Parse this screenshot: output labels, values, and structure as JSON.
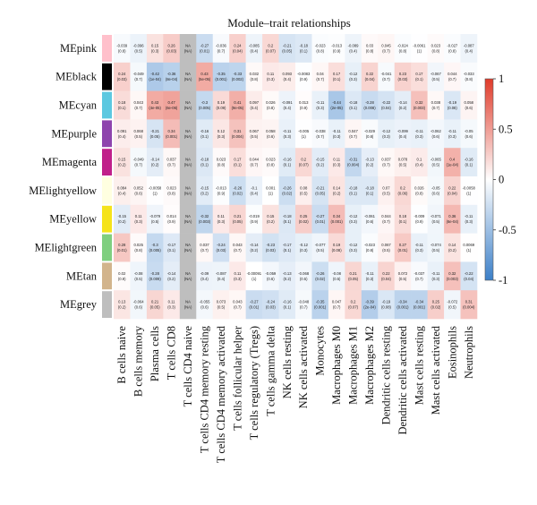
{
  "chart_data": {
    "type": "heatmap",
    "title": "Module–trait relationships",
    "rows": [
      "MEpink",
      "MEblack",
      "MEcyan",
      "MEpurple",
      "MEmagenta",
      "MElightyellow",
      "MEyellow",
      "MElightgreen",
      "MEtan",
      "MEgrey"
    ],
    "row_colors": [
      "#FFC0CB",
      "#000000",
      "#5CC8E0",
      "#8E44AD",
      "#C0208A",
      "#FFFFE0",
      "#F5E31A",
      "#7FCF7F",
      "#D2B48C",
      "#BEBEBE"
    ],
    "columns": [
      "B cells naive",
      "B cells memory",
      "Plasma cells",
      "T cells CD8",
      "T cells CD4 naive",
      "T cells CD4 memory resting",
      "T cells CD4 memory activated",
      "T cells follicular helper",
      "T cells regulatory (Tregs)",
      "T cells gamma delta",
      "NK cells resting",
      "NK cells activated",
      "Monocytes",
      "Macrophages M0",
      "Macrophages M1",
      "Macrophages M2",
      "Dendritic cells resting",
      "Dendritic cells activated",
      "Mast cells resting",
      "Mast cells activated",
      "Eosinophils",
      "Neutrophils"
    ],
    "na_column_index": 4,
    "colorbar": {
      "min": -1,
      "max": 1,
      "ticks": [
        "1",
        "0.5",
        "0",
        "-0.5",
        "-1"
      ],
      "low_color": "#3B7FC8",
      "mid_color": "#FFFFFF",
      "high_color": "#E03B2A"
    },
    "values": [
      [
        "-0.039",
        "-0.096",
        "0.15",
        "0.26",
        "NA",
        "-0.27",
        "-0.036",
        "0.24",
        "-0.085",
        "0.2",
        "-0.21",
        "-0.18",
        "-0.023",
        "-0.013",
        "-0.089",
        "0.03",
        "0.045",
        "-0.024",
        "-0.0061",
        "0.023",
        "-0.027",
        "-0.087"
      ],
      [
        "0.24",
        "-0.049",
        "-0.42",
        "-0.36",
        "NA",
        "0.43",
        "-0.35",
        "-0.33",
        "0.032",
        "0.11",
        "0.093",
        "-0.0083",
        "0.04",
        "0.17",
        "-0.12",
        "0.22",
        "-0.041",
        "0.23",
        "0.17",
        "-0.067",
        "0.044",
        "-0.033"
      ],
      [
        "0.18",
        "0.043",
        "0.43",
        "0.47",
        "NA",
        "-0.3",
        "0.19",
        "0.41",
        "0.097",
        "0.026",
        "-0.091",
        "0.013",
        "-0.11",
        "-0.44",
        "-0.18",
        "-0.28",
        "-0.22",
        "-0.14",
        "0.32",
        "0.038",
        "-0.19",
        "0.058"
      ],
      [
        "0.091",
        "0.068",
        "-0.21",
        "0.34",
        "NA",
        "-0.16",
        "0.12",
        "0.31",
        "0.067",
        "0.058",
        "-0.11",
        "-0.005",
        "-0.038",
        "-0.11",
        "0.047",
        "-0.029",
        "-0.12",
        "-0.099",
        "-0.11",
        "-0.062",
        "-0.11",
        "-0.05"
      ],
      [
        "0.15",
        "-0.049",
        "-0.14",
        "0.037",
        "NA",
        "-0.18",
        "0.023",
        "0.17",
        "0.044",
        "0.023",
        "-0.16",
        "0.2",
        "-0.15",
        "0.11",
        "-0.31",
        "-0.13",
        "0.037",
        "0.078",
        "0.1",
        "-0.065",
        "0.4",
        "-0.16"
      ],
      [
        "0.084",
        "0.052",
        "-0.0058",
        "0.023",
        "NA",
        "-0.15",
        "-0.013",
        "-0.26",
        "-0.1",
        "0.001",
        "-0.26",
        "0.08",
        "-0.21",
        "0.14",
        "-0.18",
        "-0.18",
        "0.07",
        "0.2",
        "0.026",
        "-0.05",
        "0.22",
        "-0.0058"
      ],
      [
        "-0.15",
        "0.11",
        "-0.079",
        "0.014",
        "NA",
        "-0.32",
        "0.11",
        "0.21",
        "-0.019",
        "0.15",
        "-0.18",
        "0.25",
        "-0.27",
        "0.34",
        "-0.12",
        "-0.061",
        "0.044",
        "0.18",
        "-0.009",
        "-0.071",
        "0.36",
        "-0.11"
      ],
      [
        "0.28",
        "0.025",
        "-0.3",
        "-0.17",
        "NA",
        "0.037",
        "-0.24",
        "0.043",
        "-0.14",
        "-0.23",
        "-0.17",
        "-0.12",
        "-0.077",
        "0.19",
        "-0.12",
        "-0.023",
        "0.067",
        "0.27",
        "-0.11",
        "-0.074",
        "0.14",
        "0.0069"
      ],
      [
        "0.02",
        "-0.08",
        "-0.28",
        "-0.14",
        "NA",
        "-0.09",
        "-0.087",
        "0.11",
        "-0.00091",
        "-0.059",
        "-0.13",
        "-0.068",
        "-0.26",
        "-0.08",
        "0.21",
        "-0.11",
        "0.22",
        "0.072",
        "-0.037",
        "-0.11",
        "0.32",
        "-0.22"
      ],
      [
        "0.13",
        "-0.064",
        "0.21",
        "0.11",
        "NA",
        "-0.055",
        "0.073",
        "0.043",
        "-0.27",
        "-0.24",
        "-0.16",
        "-0.048",
        "-0.35",
        "0.047",
        "0.2",
        "-0.39",
        "-0.19",
        "-0.34",
        "-0.34",
        "0.25",
        "-0.072",
        "0.31"
      ]
    ],
    "pvalues": [
      [
        "(0.8)",
        "(0.5)",
        "(0.3)",
        "(0.03)",
        "(NA)",
        "(0.01)",
        "(0.7)",
        "(0.04)",
        "(0.4)",
        "(0.07)",
        "(0.05)",
        "(0.1)",
        "(0.8)",
        "(0.9)",
        "(0.4)",
        "(0.8)",
        "(0.7)",
        "(0.8)",
        "(1)",
        "(0.8)",
        "(0.8)",
        "(0.4)"
      ],
      [
        "(0.03)",
        "(0.7)",
        "(1e-04)",
        "(8e-04)",
        "(NA)",
        "(5e-05)",
        "(0.001)",
        "(0.002)",
        "(0.8)",
        "(0.3)",
        "(0.4)",
        "(0.9)",
        "(0.7)",
        "(0.1)",
        "(0.3)",
        "(0.04)",
        "(0.7)",
        "(0.03)",
        "(0.1)",
        "(0.5)",
        "(0.7)",
        "(0.8)"
      ],
      [
        "(0.1)",
        "(0.7)",
        "(4e-05)",
        "(6e-06)",
        "(NA)",
        "(0.005)",
        "(0.09)",
        "(9e-05)",
        "(0.4)",
        "(0.8)",
        "(0.4)",
        "(0.9)",
        "(0.3)",
        "(2e-05)",
        "(0.1)",
        "(0.008)",
        "(0.04)",
        "(0.2)",
        "(0.003)",
        "(0.7)",
        "(0.08)",
        "(0.6)"
      ],
      [
        "(0.4)",
        "(0.5)",
        "(0.05)",
        "(0.001)",
        "(NA)",
        "(0.1)",
        "(0.3)",
        "(0.004)",
        "(0.5)",
        "(0.6)",
        "(0.3)",
        "(1)",
        "(0.7)",
        "(0.3)",
        "(0.7)",
        "(0.8)",
        "(0.3)",
        "(0.4)",
        "(0.3)",
        "(0.6)",
        "(0.3)",
        "(0.6)"
      ],
      [
        "(0.2)",
        "(0.7)",
        "(0.2)",
        "(0.7)",
        "(NA)",
        "(0.1)",
        "(0.8)",
        "(0.1)",
        "(0.7)",
        "(0.8)",
        "(0.1)",
        "(0.07)",
        "(0.2)",
        "(0.3)",
        "(0.004)",
        "(0.2)",
        "(0.7)",
        "(0.5)",
        "(0.4)",
        "(0.5)",
        "(1e-04)",
        "(0.1)"
      ],
      [
        "(0.4)",
        "(0.6)",
        "(1)",
        "(0.8)",
        "(NA)",
        "(0.2)",
        "(0.9)",
        "(0.02)",
        "(0.4)",
        "(1)",
        "(0.02)",
        "(0.5)",
        "(0.05)",
        "(0.2)",
        "(0.1)",
        "(0.1)",
        "(0.5)",
        "(0.06)",
        "(0.8)",
        "(0.6)",
        "(0.04)",
        "(1)"
      ],
      [
        "(0.2)",
        "(0.3)",
        "(0.5)",
        "(0.9)",
        "(NA)",
        "(0.003)",
        "(0.3)",
        "(0.05)",
        "(0.9)",
        "(0.2)",
        "(0.1)",
        "(0.02)",
        "(0.01)",
        "(0.001)",
        "(0.3)",
        "(0.6)",
        "(0.7)",
        "(0.1)",
        "(0.9)",
        "(0.5)",
        "(6e-04)",
        "(0.3)"
      ],
      [
        "(0.01)",
        "(0.8)",
        "(0.005)",
        "(0.1)",
        "(NA)",
        "(0.7)",
        "(0.03)",
        "(0.7)",
        "(0.2)",
        "(0.03)",
        "(0.1)",
        "(0.3)",
        "(0.5)",
        "(0.08)",
        "(0.3)",
        "(0.8)",
        "(0.5)",
        "(0.01)",
        "(0.3)",
        "(0.5)",
        "(0.2)",
        "(1)"
      ],
      [
        "(0.9)",
        "(0.5)",
        "(0.009)",
        "(0.2)",
        "(NA)",
        "(0.4)",
        "(0.4)",
        "(0.3)",
        "(1)",
        "(0.6)",
        "(0.2)",
        "(0.5)",
        "(0.02)",
        "(0.5)",
        "(0.05)",
        "(0.3)",
        "(0.04)",
        "(0.5)",
        "(0.7)",
        "(0.3)",
        "(0.003)",
        "(0.04)"
      ],
      [
        "(0.2)",
        "(0.6)",
        "(0.05)",
        "(0.3)",
        "(NA)",
        "(0.6)",
        "(0.5)",
        "(0.7)",
        "(0.01)",
        "(0.03)",
        "(0.1)",
        "(0.7)",
        "(0.001)",
        "(0.7)",
        "(0.07)",
        "(2e-04)",
        "(0.08)",
        "(0.001)",
        "(0.001)",
        "(0.02)",
        "(0.5)",
        "(0.004)"
      ]
    ]
  }
}
